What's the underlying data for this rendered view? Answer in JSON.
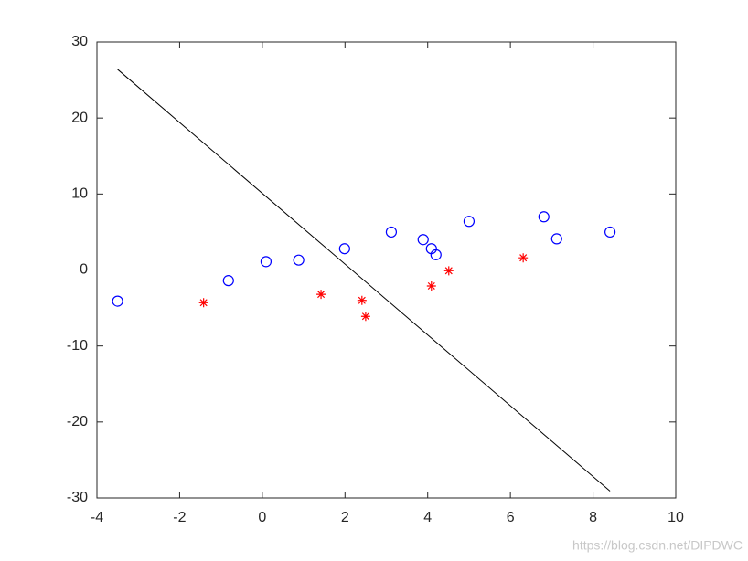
{
  "chart_data": {
    "type": "scatter",
    "xlim": [
      -4,
      10
    ],
    "xticks": [
      -4,
      -2,
      0,
      2,
      4,
      6,
      8,
      10
    ],
    "ylim": [
      -30,
      30
    ],
    "yticks": [
      -30,
      -20,
      -10,
      0,
      10,
      20,
      30
    ],
    "series": [
      {
        "type": "scatter",
        "marker": "o",
        "color": "#0000ff",
        "x": [
          -3.5,
          -0.82,
          0.09,
          0.88,
          1.99,
          3.12,
          3.89,
          4.09,
          4.2,
          5.0,
          6.81,
          7.12,
          8.41
        ],
        "values": [
          -4.1,
          -1.4,
          1.1,
          1.3,
          2.8,
          5.0,
          4.0,
          2.8,
          2.0,
          6.4,
          7.0,
          4.1,
          5.0
        ]
      },
      {
        "type": "scatter",
        "marker": "*",
        "color": "#ff0000",
        "x": [
          -1.42,
          1.42,
          2.41,
          2.5,
          4.09,
          4.51,
          6.31
        ],
        "values": [
          -4.3,
          -3.2,
          -4.0,
          -6.1,
          -2.1,
          -0.1,
          1.6
        ]
      },
      {
        "type": "line",
        "color": "#000000",
        "x": [
          -3.5,
          8.41
        ],
        "values": [
          26.4,
          -29.1
        ]
      }
    ],
    "watermark": "https://blog.csdn.net/DIPDWC"
  }
}
